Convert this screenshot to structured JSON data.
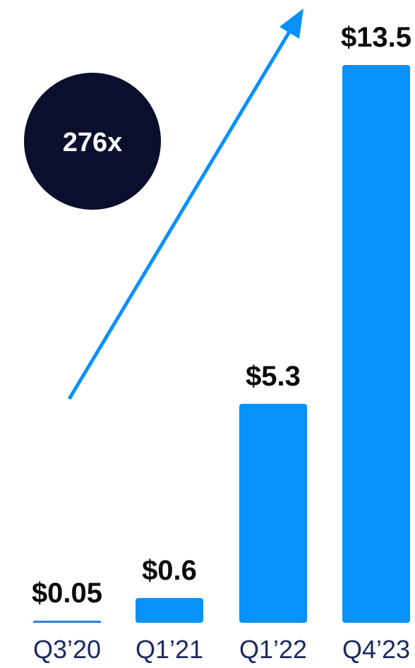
{
  "chart_data": {
    "type": "bar",
    "categories": [
      "Q3’20",
      "Q1’21",
      "Q1’22",
      "Q4’23"
    ],
    "values": [
      0.05,
      0.6,
      5.3,
      13.5
    ],
    "value_labels": [
      "$0.05",
      "$0.6",
      "$5.3",
      "$13.5"
    ],
    "title": "",
    "xlabel": "",
    "ylabel": "",
    "ylim": [
      0,
      13.5
    ],
    "grid": false,
    "annotation": {
      "text": "276x",
      "kind": "growth-multiple-badge-with-arrow"
    }
  },
  "colors": {
    "bar": "#0691fb",
    "thin_bar": "#2f7fd4",
    "arrow": "#0691fb",
    "badge": "#0a0f2d",
    "badge_text": "#ffffff",
    "value_text": "#0b0b0b",
    "tick_text": "#1a2a5a"
  }
}
